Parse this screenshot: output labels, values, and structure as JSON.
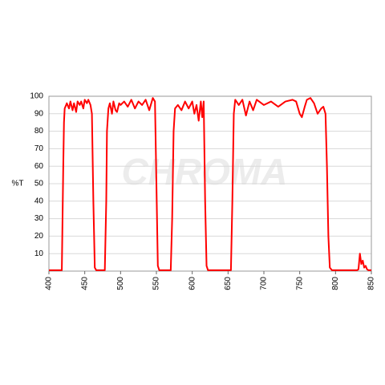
{
  "chart_data": {
    "type": "line",
    "y_label": "%T",
    "watermark": "CHROMA",
    "x": [
      400,
      418,
      420,
      421,
      422,
      425,
      428,
      430,
      433,
      435,
      438,
      440,
      443,
      445,
      448,
      450,
      453,
      455,
      458,
      460,
      462,
      464,
      466,
      478,
      480,
      481,
      483,
      485,
      488,
      490,
      493,
      495,
      498,
      500,
      505,
      510,
      515,
      520,
      525,
      530,
      535,
      540,
      545,
      548,
      550,
      552,
      554,
      570,
      572,
      574,
      576,
      580,
      585,
      590,
      595,
      600,
      603,
      606,
      609,
      612,
      614,
      616,
      618,
      620,
      622,
      654,
      656,
      658,
      660,
      665,
      670,
      675,
      680,
      685,
      690,
      700,
      710,
      720,
      730,
      740,
      745,
      750,
      753,
      757,
      760,
      765,
      770,
      775,
      780,
      783,
      786,
      788,
      790,
      792,
      795,
      830,
      832,
      834,
      836,
      838,
      840,
      842,
      844,
      846,
      850
    ],
    "series": [
      {
        "name": "%T",
        "color": "#ff0000",
        "values": [
          0.5,
          0.5,
          60,
          85,
          93,
          96,
          93,
          97,
          92,
          96,
          91,
          97,
          95,
          97,
          93,
          98,
          96,
          98,
          95,
          90,
          40,
          2,
          0.5,
          0.5,
          40,
          80,
          93,
          96,
          90,
          97,
          92,
          91,
          96,
          95,
          97,
          94,
          98,
          93,
          97,
          95,
          98,
          92,
          99,
          97,
          50,
          3,
          0.5,
          0.5,
          30,
          80,
          93,
          95,
          92,
          97,
          93,
          97,
          90,
          95,
          86,
          97,
          88,
          97,
          40,
          3,
          0.5,
          0.5,
          40,
          90,
          98,
          95,
          98,
          89,
          97,
          92,
          98,
          95,
          97,
          94,
          97,
          98,
          97,
          90,
          88,
          94,
          98,
          99,
          96,
          90,
          93,
          94,
          90,
          60,
          20,
          2,
          0.5,
          0.5,
          1,
          10,
          4,
          6,
          2,
          3,
          1,
          0.5,
          0.5
        ]
      }
    ],
    "xlim": [
      400,
      850
    ],
    "xticks": [
      400,
      450,
      500,
      550,
      600,
      650,
      700,
      750,
      800,
      850
    ],
    "ylim": [
      0,
      100
    ],
    "yticks": [
      10,
      20,
      30,
      40,
      50,
      60,
      70,
      80,
      90,
      100
    ],
    "grid": true
  }
}
